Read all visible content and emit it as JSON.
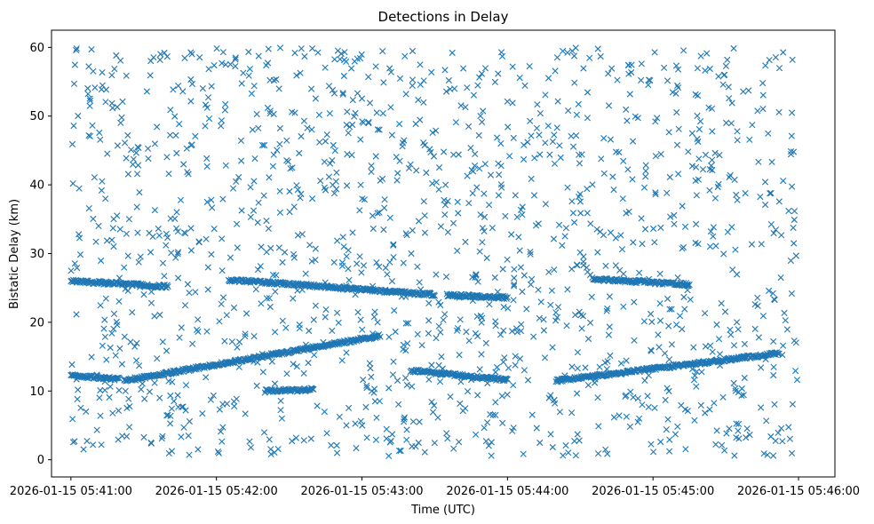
{
  "chart_data": {
    "type": "scatter",
    "title": "Detections in Delay",
    "xlabel": "Time (UTC)",
    "ylabel": "Bistatic Delay (km)",
    "marker": "x",
    "color": "#1f77b4",
    "grid": false,
    "legend": "none",
    "x_start": "2026-01-15 05:41:00",
    "x_end": "2026-01-15 05:46:00",
    "xlim": [
      "2026-01-15 05:40:52",
      "2026-01-15 05:46:15"
    ],
    "ylim": [
      -2.5,
      62.5
    ],
    "x_ticks": [
      "2026-01-15 05:41:00",
      "2026-01-15 05:42:00",
      "2026-01-15 05:43:00",
      "2026-01-15 05:44:00",
      "2026-01-15 05:45:00",
      "2026-01-15 05:46:00"
    ],
    "y_ticks": [
      0,
      10,
      20,
      30,
      40,
      50,
      60
    ],
    "tracks": [
      {
        "start": "2026-01-15 05:41:00",
        "end": "2026-01-15 05:41:40",
        "y_start": 26.0,
        "y_end": 25.2
      },
      {
        "start": "2026-01-15 05:42:05",
        "end": "2026-01-15 05:43:30",
        "y_start": 26.2,
        "y_end": 24.0
      },
      {
        "start": "2026-01-15 05:43:35",
        "end": "2026-01-15 05:44:00",
        "y_start": 24.0,
        "y_end": 23.6
      },
      {
        "start": "2026-01-15 05:44:35",
        "end": "2026-01-15 05:45:15",
        "y_start": 26.3,
        "y_end": 25.5
      },
      {
        "start": "2026-01-15 05:41:00",
        "end": "2026-01-15 05:41:20",
        "y_start": 12.3,
        "y_end": 11.7
      },
      {
        "start": "2026-01-15 05:41:22",
        "end": "2026-01-15 05:43:07",
        "y_start": 11.5,
        "y_end": 18.0
      },
      {
        "start": "2026-01-15 05:43:20",
        "end": "2026-01-15 05:44:00",
        "y_start": 13.0,
        "y_end": 11.6
      },
      {
        "start": "2026-01-15 05:44:20",
        "end": "2026-01-15 05:45:52",
        "y_start": 11.5,
        "y_end": 15.5
      },
      {
        "start": "2026-01-15 05:42:20",
        "end": "2026-01-15 05:42:40",
        "y_start": 10.0,
        "y_end": 10.2
      }
    ],
    "clutter": {
      "count": 1450,
      "y_range": [
        0.5,
        60
      ]
    }
  }
}
